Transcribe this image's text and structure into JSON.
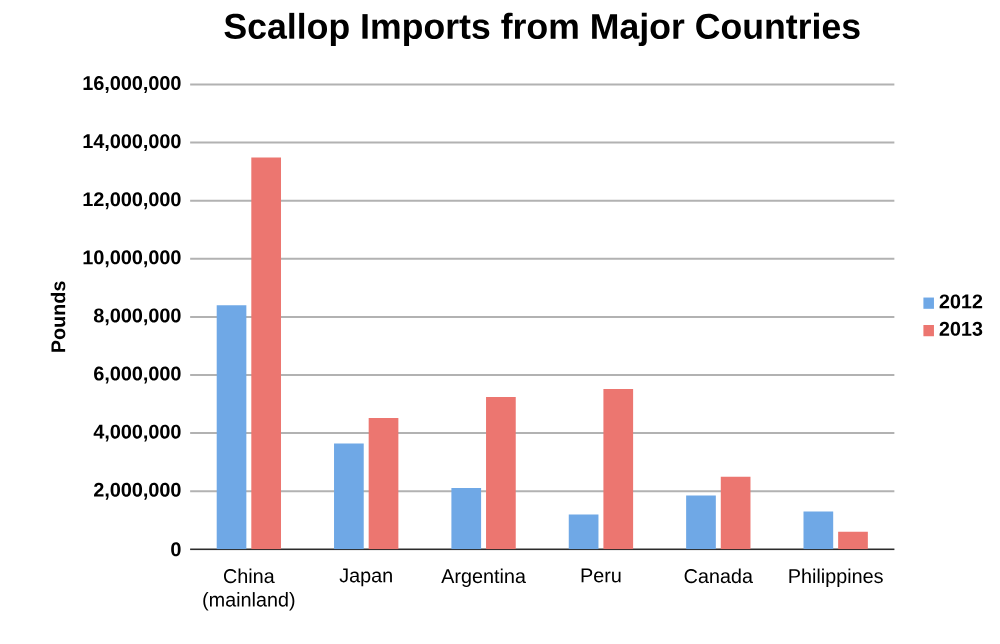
{
  "chart_data": {
    "type": "bar",
    "title": "Scallop Imports from Major Countries",
    "ylabel": "Pounds",
    "categories": [
      "China (mainland)",
      "Japan",
      "Argentina",
      "Peru",
      "Canada",
      "Philippines"
    ],
    "series": [
      {
        "name": "2012",
        "color": "#6fa8e6",
        "values": [
          8400000,
          3640000,
          2110000,
          1200000,
          1850000,
          1300000
        ]
      },
      {
        "name": "2013",
        "color": "#ec7670",
        "values": [
          13490000,
          4520000,
          5240000,
          5520000,
          2500000,
          600000
        ]
      }
    ],
    "ylim": [
      0,
      16000000
    ],
    "yticks": [
      {
        "value": 0,
        "label": "0"
      },
      {
        "value": 2000000,
        "label": "2,000,000"
      },
      {
        "value": 4000000,
        "label": "4,000,000"
      },
      {
        "value": 6000000,
        "label": "6,000,000"
      },
      {
        "value": 8000000,
        "label": "8,000,000"
      },
      {
        "value": 10000000,
        "label": "10,000,000"
      },
      {
        "value": 12000000,
        "label": "12,000,000"
      },
      {
        "value": 14000000,
        "label": "14,000,000"
      },
      {
        "value": 16000000,
        "label": "16,000,000"
      }
    ],
    "grid": "y",
    "legend": "right"
  }
}
